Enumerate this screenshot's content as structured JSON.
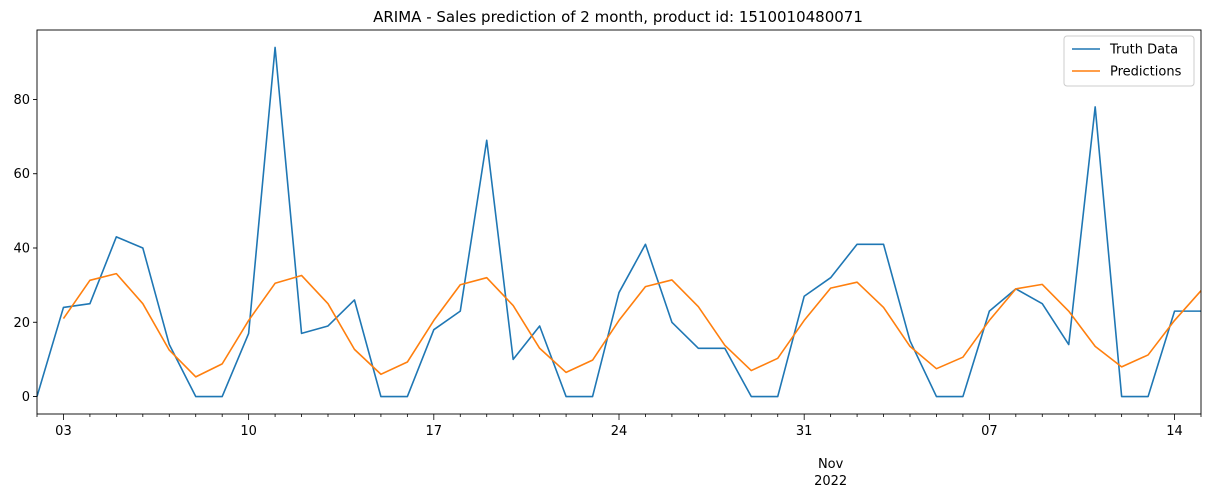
{
  "chart_data": {
    "type": "line",
    "title": "ARIMA - Sales prediction of 2 month, product id: 1510010480071",
    "xlabel": "",
    "ylabel": "",
    "x_start": "2022-10-02",
    "x_end": "2022-11-15",
    "ylim": [
      -4.7,
      98.7
    ],
    "y_ticks": [
      0,
      20,
      40,
      60,
      80
    ],
    "x_ticks": [
      {
        "date": "2022-10-03",
        "label": "03"
      },
      {
        "date": "2022-10-10",
        "label": "10"
      },
      {
        "date": "2022-10-17",
        "label": "17"
      },
      {
        "date": "2022-10-24",
        "label": "24"
      },
      {
        "date": "2022-10-31",
        "label": "31"
      },
      {
        "date": "2022-11-07",
        "label": "07"
      },
      {
        "date": "2022-11-14",
        "label": "14"
      }
    ],
    "month_label": {
      "date": "2022-11-01",
      "month": "Nov",
      "year": "2022"
    },
    "grid": false,
    "legend_position": "top-right",
    "series": [
      {
        "name": "Truth Data",
        "color": "#1f77b4",
        "points": [
          [
            "2022-10-02",
            0
          ],
          [
            "2022-10-03",
            24
          ],
          [
            "2022-10-04",
            25
          ],
          [
            "2022-10-05",
            43
          ],
          [
            "2022-10-06",
            40
          ],
          [
            "2022-10-07",
            14
          ],
          [
            "2022-10-08",
            0
          ],
          [
            "2022-10-09",
            0
          ],
          [
            "2022-10-10",
            17
          ],
          [
            "2022-10-11",
            94
          ],
          [
            "2022-10-12",
            17
          ],
          [
            "2022-10-13",
            19
          ],
          [
            "2022-10-14",
            26
          ],
          [
            "2022-10-15",
            0
          ],
          [
            "2022-10-16",
            0
          ],
          [
            "2022-10-17",
            18
          ],
          [
            "2022-10-18",
            23
          ],
          [
            "2022-10-19",
            69
          ],
          [
            "2022-10-20",
            10
          ],
          [
            "2022-10-21",
            19
          ],
          [
            "2022-10-22",
            0
          ],
          [
            "2022-10-23",
            0
          ],
          [
            "2022-10-24",
            28
          ],
          [
            "2022-10-25",
            41
          ],
          [
            "2022-10-26",
            20
          ],
          [
            "2022-10-27",
            13
          ],
          [
            "2022-10-28",
            13
          ],
          [
            "2022-10-29",
            0
          ],
          [
            "2022-10-30",
            0
          ],
          [
            "2022-10-31",
            27
          ],
          [
            "2022-11-01",
            32
          ],
          [
            "2022-11-02",
            41
          ],
          [
            "2022-11-03",
            41
          ],
          [
            "2022-11-04",
            15
          ],
          [
            "2022-11-05",
            0
          ],
          [
            "2022-11-06",
            0
          ],
          [
            "2022-11-07",
            23
          ],
          [
            "2022-11-08",
            29
          ],
          [
            "2022-11-09",
            25
          ],
          [
            "2022-11-10",
            14
          ],
          [
            "2022-11-11",
            78
          ],
          [
            "2022-11-12",
            0
          ],
          [
            "2022-11-13",
            0
          ],
          [
            "2022-11-14",
            23
          ],
          [
            "2022-11-15",
            23
          ]
        ]
      },
      {
        "name": "Predictions",
        "color": "#ff7f0e",
        "points": [
          [
            "2022-10-03",
            21
          ],
          [
            "2022-10-04",
            31.3
          ],
          [
            "2022-10-05",
            33.1
          ],
          [
            "2022-10-06",
            25
          ],
          [
            "2022-10-07",
            12.5
          ],
          [
            "2022-10-08",
            5.3
          ],
          [
            "2022-10-09",
            8.8
          ],
          [
            "2022-10-10",
            20.5
          ],
          [
            "2022-10-11",
            30.5
          ],
          [
            "2022-10-12",
            32.6
          ],
          [
            "2022-10-13",
            25
          ],
          [
            "2022-10-14",
            12.7
          ],
          [
            "2022-10-15",
            6
          ],
          [
            "2022-10-16",
            9.3
          ],
          [
            "2022-10-17",
            20.5
          ],
          [
            "2022-10-18",
            30.1
          ],
          [
            "2022-10-19",
            32
          ],
          [
            "2022-10-20",
            24.5
          ],
          [
            "2022-10-21",
            13
          ],
          [
            "2022-10-22",
            6.5
          ],
          [
            "2022-10-23",
            9.8
          ],
          [
            "2022-10-24",
            20.5
          ],
          [
            "2022-10-25",
            29.6
          ],
          [
            "2022-10-26",
            31.4
          ],
          [
            "2022-10-27",
            24.2
          ],
          [
            "2022-10-28",
            13.8
          ],
          [
            "2022-10-29",
            7
          ],
          [
            "2022-10-30",
            10.3
          ],
          [
            "2022-10-31",
            20.5
          ],
          [
            "2022-11-01",
            29.2
          ],
          [
            "2022-11-02",
            30.8
          ],
          [
            "2022-11-03",
            24
          ],
          [
            "2022-11-04",
            13.5
          ],
          [
            "2022-11-05",
            7.5
          ],
          [
            "2022-11-06",
            10.6
          ],
          [
            "2022-11-07",
            20.5
          ],
          [
            "2022-11-08",
            29
          ],
          [
            "2022-11-09",
            30.2
          ],
          [
            "2022-11-10",
            23
          ],
          [
            "2022-11-11",
            13.5
          ],
          [
            "2022-11-12",
            8
          ],
          [
            "2022-11-13",
            11.2
          ],
          [
            "2022-11-14",
            20.5
          ],
          [
            "2022-11-15",
            28.5
          ]
        ]
      }
    ]
  }
}
